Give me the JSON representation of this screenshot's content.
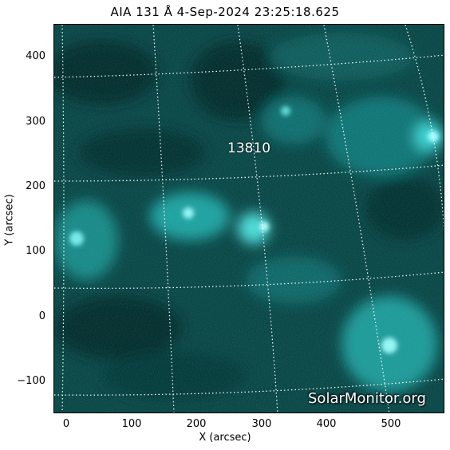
{
  "title": "AIA 131 Å  4-Sep-2024 23:25:18.625",
  "region_label": "13810",
  "watermark": "SolarMonitor.org",
  "x_axis": {
    "label": "X (arcsec)",
    "ticks": [
      "0",
      "100",
      "200",
      "300",
      "400",
      "500"
    ]
  },
  "y_axis": {
    "label": "Y (arcsec)",
    "ticks": [
      "400",
      "300",
      "200",
      "100",
      "0",
      "−100"
    ]
  },
  "colors": {
    "image_base": "#031a1a",
    "image_bright": "#bfffff",
    "grid": "#ffffff"
  }
}
